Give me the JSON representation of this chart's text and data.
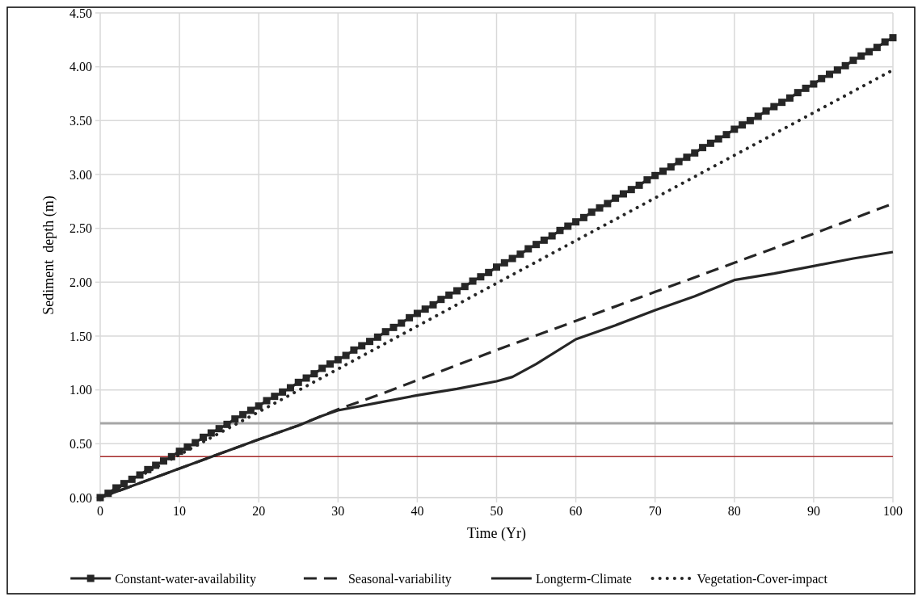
{
  "chart_data": {
    "type": "line",
    "xlabel": "Time (Yr)",
    "ylabel": "Sediment  depth (m)",
    "xlim": [
      0,
      100
    ],
    "xticks": [
      0,
      10,
      20,
      30,
      40,
      50,
      60,
      70,
      80,
      90,
      100
    ],
    "ylim": [
      0,
      4.5
    ],
    "yticks": [
      {
        "value": 0,
        "label": "0.00"
      },
      {
        "value": 0.5,
        "label": "0.50"
      },
      {
        "value": 1,
        "label": "1.00"
      },
      {
        "value": 1.5,
        "label": "1.50"
      },
      {
        "value": 2,
        "label": "2.00"
      },
      {
        "value": 2.5,
        "label": "2.50"
      },
      {
        "value": 3,
        "label": "3.00"
      },
      {
        "value": 3.5,
        "label": "3.50"
      },
      {
        "value": 4,
        "label": "4.00"
      },
      {
        "value": 4.5,
        "label": "4.50"
      }
    ],
    "grid": true,
    "legend": "bottom",
    "ref_lines": [
      {
        "axis": "y",
        "value": 0.69,
        "color": "#a6a6a6"
      },
      {
        "axis": "y",
        "value": 0.38,
        "color": "#a52a2a"
      }
    ],
    "series": [
      {
        "name": "Constant-water-availability",
        "color": "#262626",
        "marker": "square",
        "line_style": "solid",
        "x": [
          0,
          1,
          2,
          3,
          4,
          5,
          6,
          7,
          8,
          9,
          10,
          11,
          12,
          13,
          14,
          15,
          16,
          17,
          18,
          19,
          20,
          21,
          22,
          23,
          24,
          25,
          26,
          27,
          28,
          29,
          30,
          31,
          32,
          33,
          34,
          35,
          36,
          37,
          38,
          39,
          40,
          41,
          42,
          43,
          44,
          45,
          46,
          47,
          48,
          49,
          50,
          51,
          52,
          53,
          54,
          55,
          56,
          57,
          58,
          59,
          60,
          61,
          62,
          63,
          64,
          65,
          66,
          67,
          68,
          69,
          70,
          71,
          72,
          73,
          74,
          75,
          76,
          77,
          78,
          79,
          80,
          81,
          82,
          83,
          84,
          85,
          86,
          87,
          88,
          89,
          90,
          91,
          92,
          93,
          94,
          95,
          96,
          97,
          98,
          99,
          100
        ],
        "values": [
          0,
          0.04,
          0.09,
          0.13,
          0.17,
          0.21,
          0.26,
          0.3,
          0.34,
          0.38,
          0.43,
          0.47,
          0.51,
          0.56,
          0.6,
          0.64,
          0.68,
          0.73,
          0.77,
          0.81,
          0.85,
          0.9,
          0.94,
          0.98,
          1.02,
          1.07,
          1.11,
          1.15,
          1.2,
          1.24,
          1.28,
          1.32,
          1.37,
          1.41,
          1.45,
          1.49,
          1.54,
          1.58,
          1.62,
          1.67,
          1.71,
          1.75,
          1.79,
          1.84,
          1.88,
          1.92,
          1.96,
          2.01,
          2.05,
          2.09,
          2.14,
          2.18,
          2.22,
          2.26,
          2.31,
          2.35,
          2.39,
          2.43,
          2.48,
          2.52,
          2.56,
          2.6,
          2.65,
          2.69,
          2.73,
          2.78,
          2.82,
          2.86,
          2.9,
          2.95,
          2.99,
          3.03,
          3.07,
          3.12,
          3.16,
          3.2,
          3.25,
          3.29,
          3.33,
          3.37,
          3.42,
          3.46,
          3.5,
          3.54,
          3.59,
          3.63,
          3.67,
          3.71,
          3.76,
          3.8,
          3.84,
          3.89,
          3.93,
          3.97,
          4.01,
          4.06,
          4.1,
          4.14,
          4.18,
          4.23,
          4.27
        ]
      },
      {
        "name": "Seasonal-variability",
        "color": "#262626",
        "marker": "none",
        "line_style": "dashed",
        "x": [
          0,
          10,
          20,
          25,
          30,
          35,
          40,
          50,
          60,
          70,
          80,
          90,
          100
        ],
        "values": [
          0,
          0.27,
          0.54,
          0.67,
          0.82,
          0.95,
          1.09,
          1.37,
          1.64,
          1.91,
          2.18,
          2.45,
          2.73
        ]
      },
      {
        "name": "Longterm-Climate",
        "color": "#262626",
        "marker": "none",
        "line_style": "solid",
        "x": [
          0,
          10,
          20,
          25,
          28,
          30,
          35,
          40,
          45,
          50,
          52,
          55,
          60,
          65,
          70,
          75,
          80,
          85,
          90,
          95,
          100
        ],
        "values": [
          0,
          0.27,
          0.54,
          0.67,
          0.76,
          0.81,
          0.88,
          0.95,
          1.01,
          1.08,
          1.12,
          1.24,
          1.47,
          1.6,
          1.74,
          1.87,
          2.02,
          2.08,
          2.15,
          2.22,
          2.28
        ]
      },
      {
        "name": "Vegetation-Cover-impact",
        "color": "#262626",
        "marker": "none",
        "line_style": "dotted",
        "x": [
          0,
          50,
          100
        ],
        "values": [
          0,
          1.99,
          3.97
        ]
      }
    ]
  }
}
